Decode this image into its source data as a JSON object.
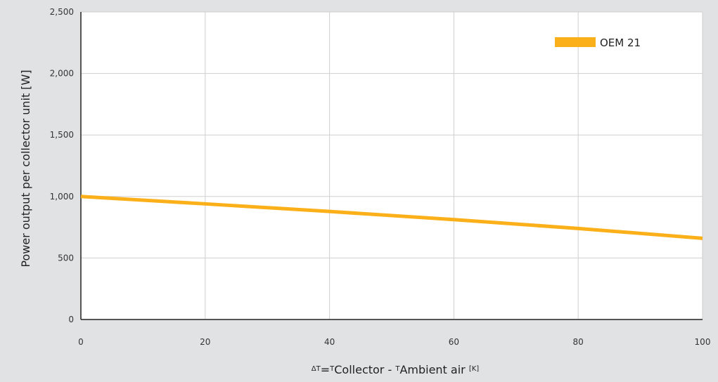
{
  "chart_data": {
    "type": "line",
    "title": "",
    "x": [
      0,
      20,
      40,
      60,
      80,
      100
    ],
    "series": [
      {
        "name": "OEM 21",
        "values": [
          1000,
          940,
          878,
          812,
          740,
          660
        ]
      }
    ],
    "xlim": [
      0,
      100
    ],
    "ylim": [
      0,
      2500
    ],
    "x_ticks": [
      "0",
      "20",
      "40",
      "60",
      "80",
      "100"
    ],
    "y_ticks": [
      "0",
      "500",
      "1,000",
      "1,500",
      "2,000",
      "2,500"
    ],
    "ylabel": "Power output per collector unit [W]",
    "xlabel": {
      "delta": "ΔT",
      "equals": "=",
      "t1": "T",
      "collector": "Collector - ",
      "t2": "T",
      "ambient": "Ambient air ",
      "unit": "[K]"
    },
    "grid": true,
    "legend": "top-right",
    "colors": {
      "series": "#fbb01a",
      "grid": "#cfcfcf",
      "axis": "#222222",
      "plot_bg": "#ffffff",
      "page_bg": "#e1e2e3"
    }
  }
}
